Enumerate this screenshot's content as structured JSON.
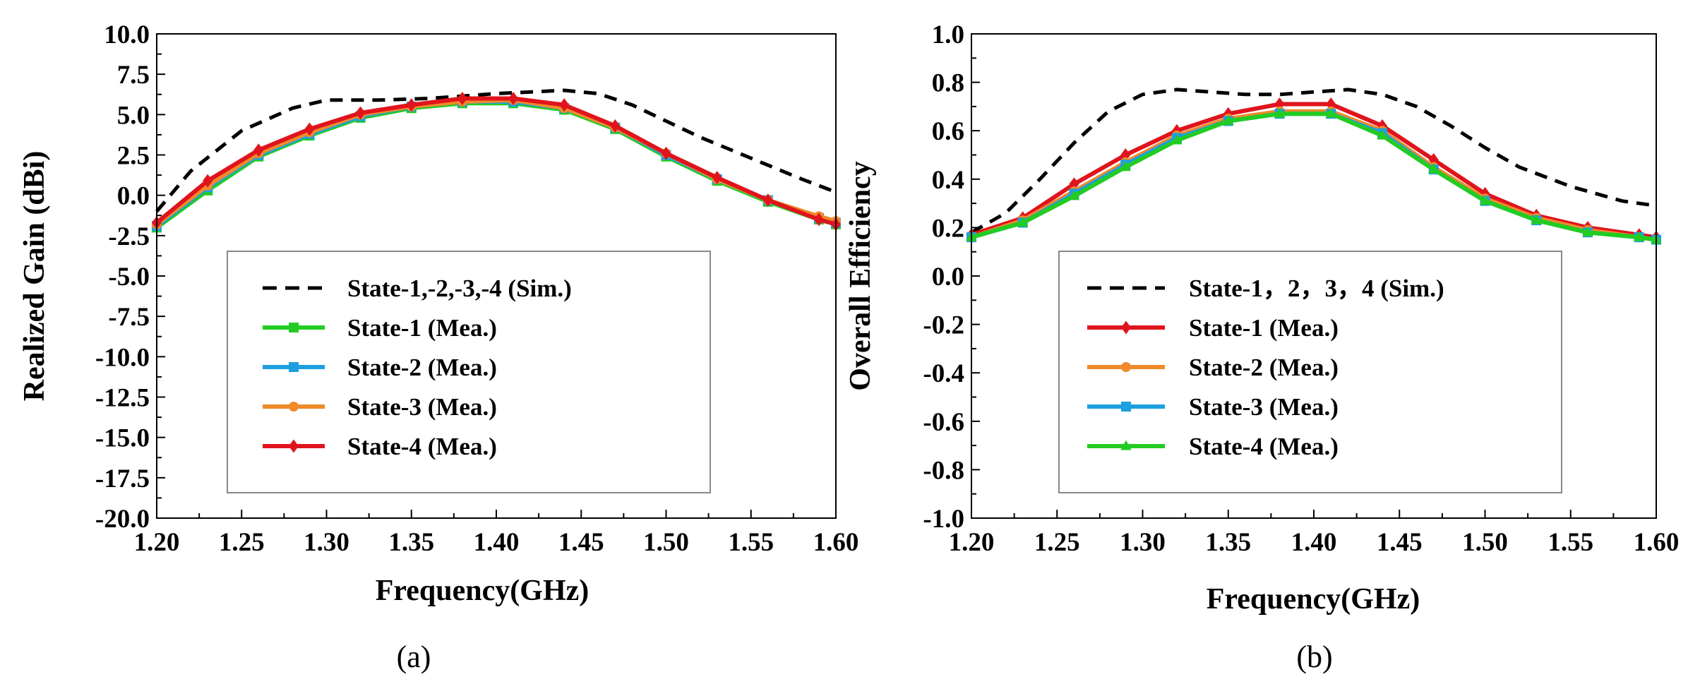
{
  "chart_data": [
    {
      "type": "line",
      "panel_label": "(a)",
      "xlabel": "Frequency(GHz)",
      "ylabel": "Realized Gain (dBi)",
      "xlim": [
        1.2,
        1.6
      ],
      "ylim": [
        -20.0,
        10.0
      ],
      "xticks": [
        "1.20",
        "1.25",
        "1.30",
        "1.35",
        "1.40",
        "1.45",
        "1.50",
        "1.55",
        "1.60"
      ],
      "yticks": [
        "10.0",
        "7.5",
        "5.0",
        "2.5",
        "0.0",
        "-2.5",
        "-5.0",
        "-7.5",
        "-10.0",
        "-12.5",
        "-15.0",
        "-17.5",
        "-20.0"
      ],
      "legend_position": "center-bottom",
      "series": [
        {
          "name": "State-1,-2,-3,-4 (Sim.)",
          "color": "#000000",
          "style": "dashed",
          "marker": "none",
          "x": [
            1.2,
            1.22,
            1.25,
            1.28,
            1.3,
            1.33,
            1.36,
            1.4,
            1.44,
            1.46,
            1.48,
            1.5,
            1.52,
            1.55,
            1.58,
            1.6
          ],
          "y": [
            -1.0,
            1.5,
            4.0,
            5.4,
            5.9,
            5.9,
            6.0,
            6.3,
            6.5,
            6.3,
            5.6,
            4.6,
            3.6,
            2.3,
            1.0,
            0.2
          ]
        },
        {
          "name": "State-1 (Mea.)",
          "color": "#22cc22",
          "style": "solid",
          "marker": "square",
          "x": [
            1.2,
            1.23,
            1.26,
            1.29,
            1.32,
            1.35,
            1.38,
            1.41,
            1.44,
            1.47,
            1.5,
            1.53,
            1.56,
            1.59,
            1.6
          ],
          "y": [
            -2.0,
            0.3,
            2.4,
            3.7,
            4.8,
            5.4,
            5.7,
            5.7,
            5.3,
            4.1,
            2.4,
            0.9,
            -0.4,
            -1.5,
            -1.8
          ]
        },
        {
          "name": "State-2 (Mea.)",
          "color": "#1e9fe0",
          "style": "solid",
          "marker": "square",
          "x": [
            1.2,
            1.23,
            1.26,
            1.29,
            1.32,
            1.35,
            1.38,
            1.41,
            1.44,
            1.47,
            1.5,
            1.53,
            1.56,
            1.59,
            1.6
          ],
          "y": [
            -1.9,
            0.5,
            2.5,
            3.8,
            4.9,
            5.5,
            5.8,
            5.8,
            5.4,
            4.2,
            2.5,
            1.0,
            -0.3,
            -1.4,
            -1.7
          ]
        },
        {
          "name": "State-3 (Mea.)",
          "color": "#f08a2a",
          "style": "solid",
          "marker": "circle",
          "x": [
            1.2,
            1.23,
            1.26,
            1.29,
            1.32,
            1.35,
            1.38,
            1.41,
            1.44,
            1.47,
            1.5,
            1.53,
            1.56,
            1.59,
            1.6
          ],
          "y": [
            -1.8,
            0.6,
            2.6,
            3.9,
            5.0,
            5.5,
            5.8,
            5.9,
            5.4,
            4.2,
            2.6,
            1.0,
            -0.3,
            -1.3,
            -1.6
          ]
        },
        {
          "name": "State-4 (Mea.)",
          "color": "#e0141c",
          "style": "solid",
          "marker": "diamond",
          "x": [
            1.2,
            1.23,
            1.26,
            1.29,
            1.32,
            1.35,
            1.38,
            1.41,
            1.44,
            1.47,
            1.5,
            1.53,
            1.56,
            1.59,
            1.6
          ],
          "y": [
            -1.7,
            0.9,
            2.8,
            4.1,
            5.1,
            5.6,
            6.0,
            6.0,
            5.6,
            4.3,
            2.6,
            1.1,
            -0.3,
            -1.5,
            -1.8
          ]
        }
      ]
    },
    {
      "type": "line",
      "panel_label": "(b)",
      "xlabel": "Frequency(GHz)",
      "ylabel": "Overall Efficiency",
      "xlim": [
        1.2,
        1.6
      ],
      "ylim": [
        -1.0,
        1.0
      ],
      "xticks": [
        "1.20",
        "1.25",
        "1.30",
        "1.35",
        "1.40",
        "1.45",
        "1.50",
        "1.55",
        "1.60"
      ],
      "yticks": [
        "1.0",
        "0.8",
        "0.6",
        "0.4",
        "0.2",
        "0.0",
        "-0.2",
        "-0.4",
        "-0.6",
        "-0.8",
        "-1.0"
      ],
      "legend_position": "center-bottom",
      "series": [
        {
          "name": "State-1，2，3，4 (Sim.)",
          "color": "#000000",
          "style": "dashed",
          "marker": "none",
          "x": [
            1.2,
            1.22,
            1.24,
            1.26,
            1.28,
            1.3,
            1.32,
            1.34,
            1.36,
            1.38,
            1.4,
            1.42,
            1.44,
            1.46,
            1.48,
            1.5,
            1.52,
            1.55,
            1.58,
            1.6
          ],
          "y": [
            0.18,
            0.26,
            0.4,
            0.55,
            0.68,
            0.75,
            0.77,
            0.76,
            0.75,
            0.75,
            0.76,
            0.77,
            0.75,
            0.7,
            0.62,
            0.53,
            0.45,
            0.37,
            0.31,
            0.29
          ]
        },
        {
          "name": "State-1 (Mea.)",
          "color": "#e0141c",
          "style": "solid",
          "marker": "diamond",
          "x": [
            1.2,
            1.23,
            1.26,
            1.29,
            1.32,
            1.35,
            1.38,
            1.41,
            1.44,
            1.47,
            1.5,
            1.53,
            1.56,
            1.59,
            1.6
          ],
          "y": [
            0.17,
            0.24,
            0.38,
            0.5,
            0.6,
            0.67,
            0.71,
            0.71,
            0.62,
            0.48,
            0.34,
            0.25,
            0.2,
            0.17,
            0.16
          ]
        },
        {
          "name": "State-2 (Mea.)",
          "color": "#f08a2a",
          "style": "solid",
          "marker": "circle",
          "x": [
            1.2,
            1.23,
            1.26,
            1.29,
            1.32,
            1.35,
            1.38,
            1.41,
            1.44,
            1.47,
            1.5,
            1.53,
            1.56,
            1.59,
            1.6
          ],
          "y": [
            0.16,
            0.23,
            0.35,
            0.47,
            0.58,
            0.65,
            0.68,
            0.68,
            0.6,
            0.45,
            0.32,
            0.24,
            0.19,
            0.16,
            0.15
          ]
        },
        {
          "name": "State-3 (Mea.)",
          "color": "#1e9fe0",
          "style": "solid",
          "marker": "square",
          "x": [
            1.2,
            1.23,
            1.26,
            1.29,
            1.32,
            1.35,
            1.38,
            1.41,
            1.44,
            1.47,
            1.5,
            1.53,
            1.56,
            1.59,
            1.6
          ],
          "y": [
            0.16,
            0.22,
            0.34,
            0.46,
            0.57,
            0.64,
            0.67,
            0.67,
            0.59,
            0.44,
            0.31,
            0.23,
            0.18,
            0.16,
            0.15
          ]
        },
        {
          "name": "State-4 (Mea.)",
          "color": "#22cc22",
          "style": "solid",
          "marker": "triangle",
          "x": [
            1.2,
            1.23,
            1.26,
            1.29,
            1.32,
            1.35,
            1.38,
            1.41,
            1.44,
            1.47,
            1.5,
            1.53,
            1.56,
            1.59,
            1.6
          ],
          "y": [
            0.16,
            0.22,
            0.33,
            0.45,
            0.56,
            0.64,
            0.67,
            0.67,
            0.58,
            0.44,
            0.31,
            0.23,
            0.18,
            0.16,
            0.15
          ]
        }
      ]
    }
  ]
}
